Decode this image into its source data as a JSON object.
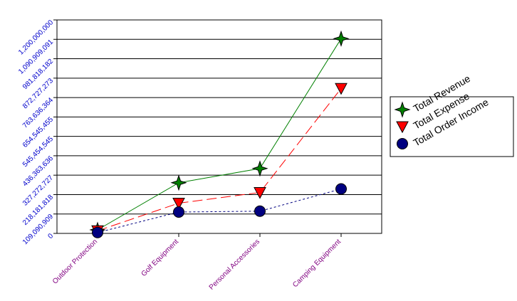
{
  "chart_data": {
    "type": "line",
    "title": "",
    "xlabel": "",
    "ylabel": "",
    "categories": [
      "Outdoor Protection",
      "Golf Equipment",
      "Personal Accessories",
      "Camping Equipment"
    ],
    "y_ticks": [
      "0",
      "109,090,909",
      "218,181,818",
      "327,272,727",
      "436,363,636",
      "545,454,545",
      "654,545,455",
      "763,636,364",
      "872,727,273",
      "981,818,182",
      "1,090,909,091",
      "1,200,000,000"
    ],
    "ylim": [
      0,
      1200000000
    ],
    "grid": "horizontal",
    "legend_position": "right",
    "series": [
      {
        "name": "Total Revenue",
        "marker": "star",
        "color": "#008000",
        "line_style": "solid",
        "values": [
          20000000,
          285000000,
          365000000,
          1095000000
        ]
      },
      {
        "name": "Total Expense",
        "marker": "triangle-down",
        "color": "#ff0000",
        "line_style": "dashed",
        "values": [
          15000000,
          170000000,
          230000000,
          815000000
        ]
      },
      {
        "name": "Total Order Income",
        "marker": "circle",
        "color": "#000080",
        "line_style": "dotted",
        "values": [
          5000000,
          120000000,
          125000000,
          250000000
        ]
      }
    ],
    "colors": {
      "tick_label": "#0000cc",
      "category_label": "#800080",
      "axis": "#000000"
    }
  }
}
